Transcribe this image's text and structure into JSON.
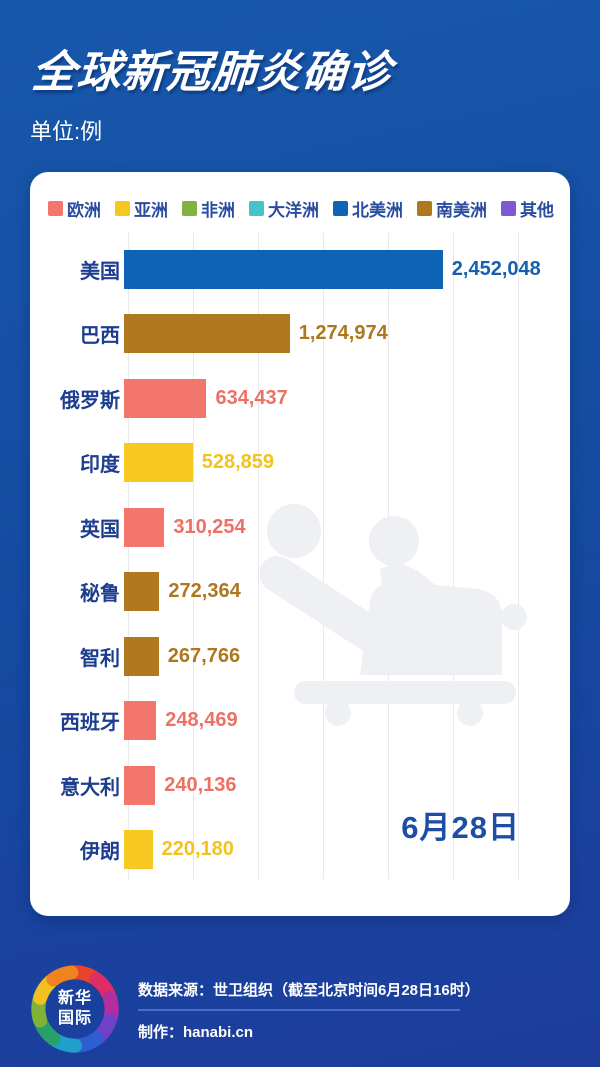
{
  "header": {
    "title": "全球新冠肺炎确诊",
    "subtitle": "单位:例"
  },
  "legend": {
    "items": [
      {
        "label": "欧洲",
        "color": "#f2766b"
      },
      {
        "label": "亚洲",
        "color": "#f6c71f"
      },
      {
        "label": "非洲",
        "color": "#7fb241"
      },
      {
        "label": "大洋洲",
        "color": "#45c3c9"
      },
      {
        "label": "北美洲",
        "color": "#0e63b6"
      },
      {
        "label": "南美洲",
        "color": "#b0791f"
      },
      {
        "label": "其他",
        "color": "#7c5bd2"
      }
    ]
  },
  "chart_data": {
    "type": "bar",
    "orientation": "horizontal",
    "title": "全球新冠肺炎确诊",
    "unit": "例",
    "date": "6月28日",
    "categories": [
      "美国",
      "巴西",
      "俄罗斯",
      "印度",
      "英国",
      "秘鲁",
      "智利",
      "西班牙",
      "意大利",
      "伊朗"
    ],
    "values": [
      2452048,
      1274974,
      634437,
      528859,
      310254,
      272364,
      267766,
      248469,
      240136,
      220180
    ],
    "value_labels": [
      "2,452,048",
      "1,274,974",
      "634,437",
      "528,859",
      "310,254",
      "272,364",
      "267,766",
      "248,469",
      "240,136",
      "220,180"
    ],
    "continents": [
      "北美洲",
      "南美洲",
      "欧洲",
      "亚洲",
      "欧洲",
      "南美洲",
      "南美洲",
      "欧洲",
      "欧洲",
      "亚洲"
    ],
    "bar_colors": [
      "#0e63b6",
      "#b0791f",
      "#f2766b",
      "#f8c822",
      "#f2766b",
      "#b0791f",
      "#b0791f",
      "#f2766b",
      "#f2766b",
      "#f8c822"
    ],
    "value_text_colors": [
      "#1560ae",
      "#ad771e",
      "#ee7065",
      "#f2c31c",
      "#ee7065",
      "#ad771e",
      "#ad771e",
      "#ee7065",
      "#ee7065",
      "#f2c31c"
    ],
    "xlim": [
      0,
      3000000
    ],
    "gridline_interval": 500000,
    "grid": "vertical",
    "legend_position": "top"
  },
  "footer": {
    "logo": {
      "line1": "新华",
      "line2": "国际"
    },
    "source": "数据来源：世卫组织（截至北京时间6月28日16时）",
    "credit": "制作：hanabi.cn"
  }
}
